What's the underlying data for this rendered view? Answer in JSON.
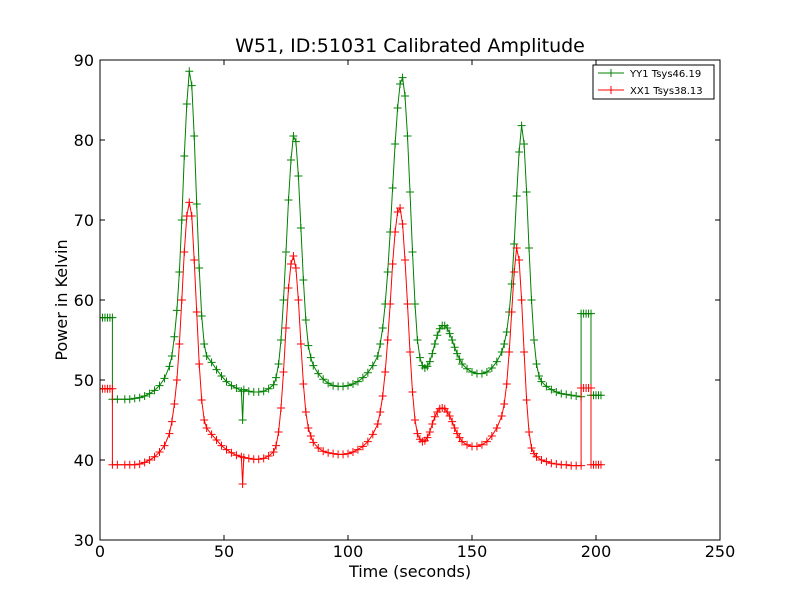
{
  "chart_data": {
    "type": "line",
    "title": "W51, ID:51031 Calibrated Amplitude",
    "xlabel": "Time (seconds)",
    "ylabel": "Power in Kelvin",
    "xlim": [
      0,
      250
    ],
    "ylim": [
      30,
      90
    ],
    "xticks": [
      "0",
      "50",
      "100",
      "150",
      "200",
      "250"
    ],
    "yticks": [
      "30",
      "40",
      "50",
      "60",
      "70",
      "80",
      "90"
    ],
    "grid": false,
    "legend_position": "top-right",
    "marker": "+",
    "series": [
      {
        "name": "YY1 Tsys46.19",
        "color": "#008000",
        "points": [
          [
            0,
            57.8
          ],
          [
            1,
            57.8
          ],
          [
            2,
            57.8
          ],
          [
            3,
            57.8
          ],
          [
            4,
            57.8
          ],
          [
            5,
            57.8
          ],
          [
            5,
            47.6
          ],
          [
            7,
            47.6
          ],
          [
            10,
            47.6
          ],
          [
            12,
            47.6
          ],
          [
            14,
            47.7
          ],
          [
            16,
            47.8
          ],
          [
            18,
            48.0
          ],
          [
            20,
            48.3
          ],
          [
            22,
            48.7
          ],
          [
            24,
            49.3
          ],
          [
            26,
            50.2
          ],
          [
            28,
            51.7
          ],
          [
            29,
            53.0
          ],
          [
            30,
            55.4
          ],
          [
            31,
            58.7
          ],
          [
            32,
            63.5
          ],
          [
            33,
            70.0
          ],
          [
            34,
            78.0
          ],
          [
            35,
            84.5
          ],
          [
            36,
            88.6
          ],
          [
            37,
            86.8
          ],
          [
            38,
            80.5
          ],
          [
            39,
            72.0
          ],
          [
            40,
            64.0
          ],
          [
            41,
            58.0
          ],
          [
            42,
            54.5
          ],
          [
            43,
            53.0
          ],
          [
            45,
            52.2
          ],
          [
            47,
            51.3
          ],
          [
            49,
            50.5
          ],
          [
            51,
            49.8
          ],
          [
            53,
            49.3
          ],
          [
            55,
            49.0
          ],
          [
            57,
            48.6
          ],
          [
            57.5,
            45.0
          ],
          [
            58,
            48.8
          ],
          [
            60,
            48.6
          ],
          [
            62,
            48.5
          ],
          [
            64,
            48.5
          ],
          [
            66,
            48.6
          ],
          [
            68,
            48.9
          ],
          [
            70,
            49.4
          ],
          [
            71,
            50.3
          ],
          [
            72,
            52.0
          ],
          [
            73,
            55.0
          ],
          [
            74,
            60.0
          ],
          [
            75,
            66.0
          ],
          [
            76,
            72.5
          ],
          [
            77,
            77.5
          ],
          [
            78,
            80.5
          ],
          [
            79,
            79.8
          ],
          [
            80,
            75.5
          ],
          [
            81,
            69.0
          ],
          [
            82,
            62.5
          ],
          [
            83,
            57.5
          ],
          [
            84,
            54.3
          ],
          [
            85,
            52.8
          ],
          [
            86,
            51.8
          ],
          [
            88,
            50.8
          ],
          [
            90,
            50.1
          ],
          [
            92,
            49.6
          ],
          [
            94,
            49.3
          ],
          [
            96,
            49.2
          ],
          [
            98,
            49.2
          ],
          [
            100,
            49.3
          ],
          [
            102,
            49.5
          ],
          [
            104,
            49.8
          ],
          [
            106,
            50.3
          ],
          [
            108,
            50.9
          ],
          [
            110,
            51.8
          ],
          [
            112,
            53.0
          ],
          [
            113,
            54.5
          ],
          [
            114,
            56.5
          ],
          [
            115,
            59.5
          ],
          [
            116,
            63.5
          ],
          [
            117,
            68.5
          ],
          [
            118,
            74.0
          ],
          [
            119,
            79.5
          ],
          [
            120,
            84.0
          ],
          [
            121,
            87.0
          ],
          [
            122,
            87.8
          ],
          [
            123,
            85.5
          ],
          [
            124,
            80.5
          ],
          [
            125,
            73.5
          ],
          [
            126,
            66.0
          ],
          [
            127,
            59.5
          ],
          [
            128,
            55.0
          ],
          [
            129,
            52.8
          ],
          [
            130,
            51.8
          ],
          [
            131,
            51.5
          ],
          [
            132,
            51.7
          ],
          [
            133,
            52.3
          ],
          [
            134,
            53.3
          ],
          [
            135,
            54.5
          ],
          [
            136,
            55.6
          ],
          [
            137,
            56.4
          ],
          [
            138,
            56.8
          ],
          [
            139,
            56.8
          ],
          [
            140,
            56.5
          ],
          [
            141,
            55.8
          ],
          [
            142,
            55.0
          ],
          [
            143,
            54.1
          ],
          [
            144,
            53.3
          ],
          [
            145,
            52.6
          ],
          [
            146,
            52.0
          ],
          [
            148,
            51.4
          ],
          [
            150,
            51.0
          ],
          [
            152,
            50.8
          ],
          [
            154,
            50.8
          ],
          [
            156,
            51.0
          ],
          [
            158,
            51.5
          ],
          [
            160,
            52.3
          ],
          [
            162,
            53.5
          ],
          [
            163,
            54.5
          ],
          [
            164,
            56.0
          ],
          [
            165,
            58.5
          ],
          [
            166,
            62.0
          ],
          [
            167,
            67.0
          ],
          [
            168,
            73.0
          ],
          [
            169,
            78.5
          ],
          [
            170,
            81.8
          ],
          [
            171,
            79.5
          ],
          [
            172,
            73.5
          ],
          [
            173,
            66.5
          ],
          [
            174,
            60.0
          ],
          [
            175,
            55.0
          ],
          [
            176,
            52.0
          ],
          [
            177,
            50.5
          ],
          [
            178,
            49.8
          ],
          [
            180,
            49.2
          ],
          [
            182,
            48.8
          ],
          [
            184,
            48.5
          ],
          [
            186,
            48.3
          ],
          [
            188,
            48.2
          ],
          [
            190,
            48.1
          ],
          [
            192,
            48.0
          ],
          [
            194,
            47.9
          ],
          [
            194,
            58.3
          ],
          [
            195,
            58.3
          ],
          [
            196,
            58.3
          ],
          [
            197,
            58.3
          ],
          [
            198,
            58.3
          ],
          [
            198,
            48.1
          ],
          [
            199,
            48.1
          ],
          [
            200,
            48.1
          ],
          [
            201,
            48.1
          ],
          [
            202,
            48.1
          ]
        ]
      },
      {
        "name": "XX1 Tsys38.13",
        "color": "#ff0000",
        "points": [
          [
            0,
            48.9
          ],
          [
            1,
            48.9
          ],
          [
            2,
            48.9
          ],
          [
            3,
            48.9
          ],
          [
            4,
            48.9
          ],
          [
            5,
            48.9
          ],
          [
            5,
            39.4
          ],
          [
            7,
            39.4
          ],
          [
            10,
            39.4
          ],
          [
            12,
            39.4
          ],
          [
            14,
            39.4
          ],
          [
            16,
            39.5
          ],
          [
            18,
            39.7
          ],
          [
            20,
            40.0
          ],
          [
            22,
            40.4
          ],
          [
            24,
            41.0
          ],
          [
            26,
            41.8
          ],
          [
            28,
            43.3
          ],
          [
            29,
            44.8
          ],
          [
            30,
            47.0
          ],
          [
            31,
            50.0
          ],
          [
            32,
            54.5
          ],
          [
            33,
            60.0
          ],
          [
            34,
            66.0
          ],
          [
            35,
            70.5
          ],
          [
            36,
            72.2
          ],
          [
            37,
            70.5
          ],
          [
            38,
            65.0
          ],
          [
            39,
            58.5
          ],
          [
            40,
            52.0
          ],
          [
            41,
            47.5
          ],
          [
            42,
            45.0
          ],
          [
            43,
            44.0
          ],
          [
            45,
            43.2
          ],
          [
            47,
            42.5
          ],
          [
            49,
            41.8
          ],
          [
            51,
            41.3
          ],
          [
            53,
            40.9
          ],
          [
            55,
            40.6
          ],
          [
            57,
            40.4
          ],
          [
            57.5,
            37.0
          ],
          [
            58,
            40.3
          ],
          [
            60,
            40.2
          ],
          [
            62,
            40.1
          ],
          [
            64,
            40.1
          ],
          [
            66,
            40.2
          ],
          [
            68,
            40.5
          ],
          [
            70,
            41.0
          ],
          [
            71,
            41.8
          ],
          [
            72,
            43.5
          ],
          [
            73,
            46.5
          ],
          [
            74,
            51.0
          ],
          [
            75,
            56.5
          ],
          [
            76,
            61.5
          ],
          [
            77,
            64.5
          ],
          [
            78,
            65.5
          ],
          [
            79,
            64.0
          ],
          [
            80,
            60.0
          ],
          [
            81,
            54.5
          ],
          [
            82,
            49.5
          ],
          [
            83,
            46.0
          ],
          [
            84,
            44.0
          ],
          [
            85,
            43.0
          ],
          [
            86,
            42.2
          ],
          [
            88,
            41.5
          ],
          [
            90,
            41.1
          ],
          [
            92,
            40.9
          ],
          [
            94,
            40.8
          ],
          [
            96,
            40.7
          ],
          [
            98,
            40.7
          ],
          [
            100,
            40.8
          ],
          [
            102,
            41.0
          ],
          [
            104,
            41.3
          ],
          [
            106,
            41.7
          ],
          [
            108,
            42.3
          ],
          [
            110,
            43.2
          ],
          [
            112,
            44.5
          ],
          [
            113,
            46.0
          ],
          [
            114,
            48.0
          ],
          [
            115,
            51.0
          ],
          [
            116,
            55.0
          ],
          [
            117,
            59.5
          ],
          [
            118,
            64.5
          ],
          [
            119,
            68.5
          ],
          [
            120,
            71.0
          ],
          [
            121,
            71.5
          ],
          [
            122,
            69.5
          ],
          [
            123,
            65.0
          ],
          [
            124,
            59.5
          ],
          [
            125,
            53.5
          ],
          [
            126,
            48.5
          ],
          [
            127,
            45.0
          ],
          [
            128,
            43.3
          ],
          [
            129,
            42.6
          ],
          [
            130,
            42.3
          ],
          [
            131,
            42.4
          ],
          [
            132,
            42.8
          ],
          [
            133,
            43.5
          ],
          [
            134,
            44.5
          ],
          [
            135,
            45.4
          ],
          [
            136,
            46.0
          ],
          [
            137,
            46.4
          ],
          [
            138,
            46.5
          ],
          [
            139,
            46.4
          ],
          [
            140,
            46.0
          ],
          [
            141,
            45.5
          ],
          [
            142,
            44.8
          ],
          [
            143,
            44.0
          ],
          [
            144,
            43.3
          ],
          [
            145,
            42.8
          ],
          [
            146,
            42.3
          ],
          [
            148,
            41.9
          ],
          [
            150,
            41.7
          ],
          [
            152,
            41.7
          ],
          [
            154,
            41.9
          ],
          [
            156,
            42.3
          ],
          [
            158,
            43.0
          ],
          [
            160,
            44.0
          ],
          [
            162,
            45.5
          ],
          [
            163,
            47.0
          ],
          [
            164,
            49.5
          ],
          [
            165,
            53.5
          ],
          [
            166,
            58.5
          ],
          [
            167,
            63.5
          ],
          [
            168,
            66.5
          ],
          [
            169,
            65.0
          ],
          [
            170,
            60.0
          ],
          [
            171,
            53.5
          ],
          [
            172,
            47.5
          ],
          [
            173,
            43.5
          ],
          [
            174,
            41.5
          ],
          [
            175,
            40.8
          ],
          [
            176,
            40.4
          ],
          [
            178,
            40.0
          ],
          [
            180,
            39.8
          ],
          [
            182,
            39.6
          ],
          [
            184,
            39.5
          ],
          [
            186,
            39.4
          ],
          [
            188,
            39.4
          ],
          [
            190,
            39.3
          ],
          [
            192,
            39.3
          ],
          [
            194,
            39.3
          ],
          [
            194,
            49.0
          ],
          [
            195,
            49.0
          ],
          [
            196,
            49.0
          ],
          [
            197,
            49.0
          ],
          [
            198,
            49.0
          ],
          [
            198,
            39.4
          ],
          [
            199,
            39.4
          ],
          [
            200,
            39.4
          ],
          [
            201,
            39.4
          ],
          [
            202,
            39.4
          ]
        ]
      }
    ]
  }
}
